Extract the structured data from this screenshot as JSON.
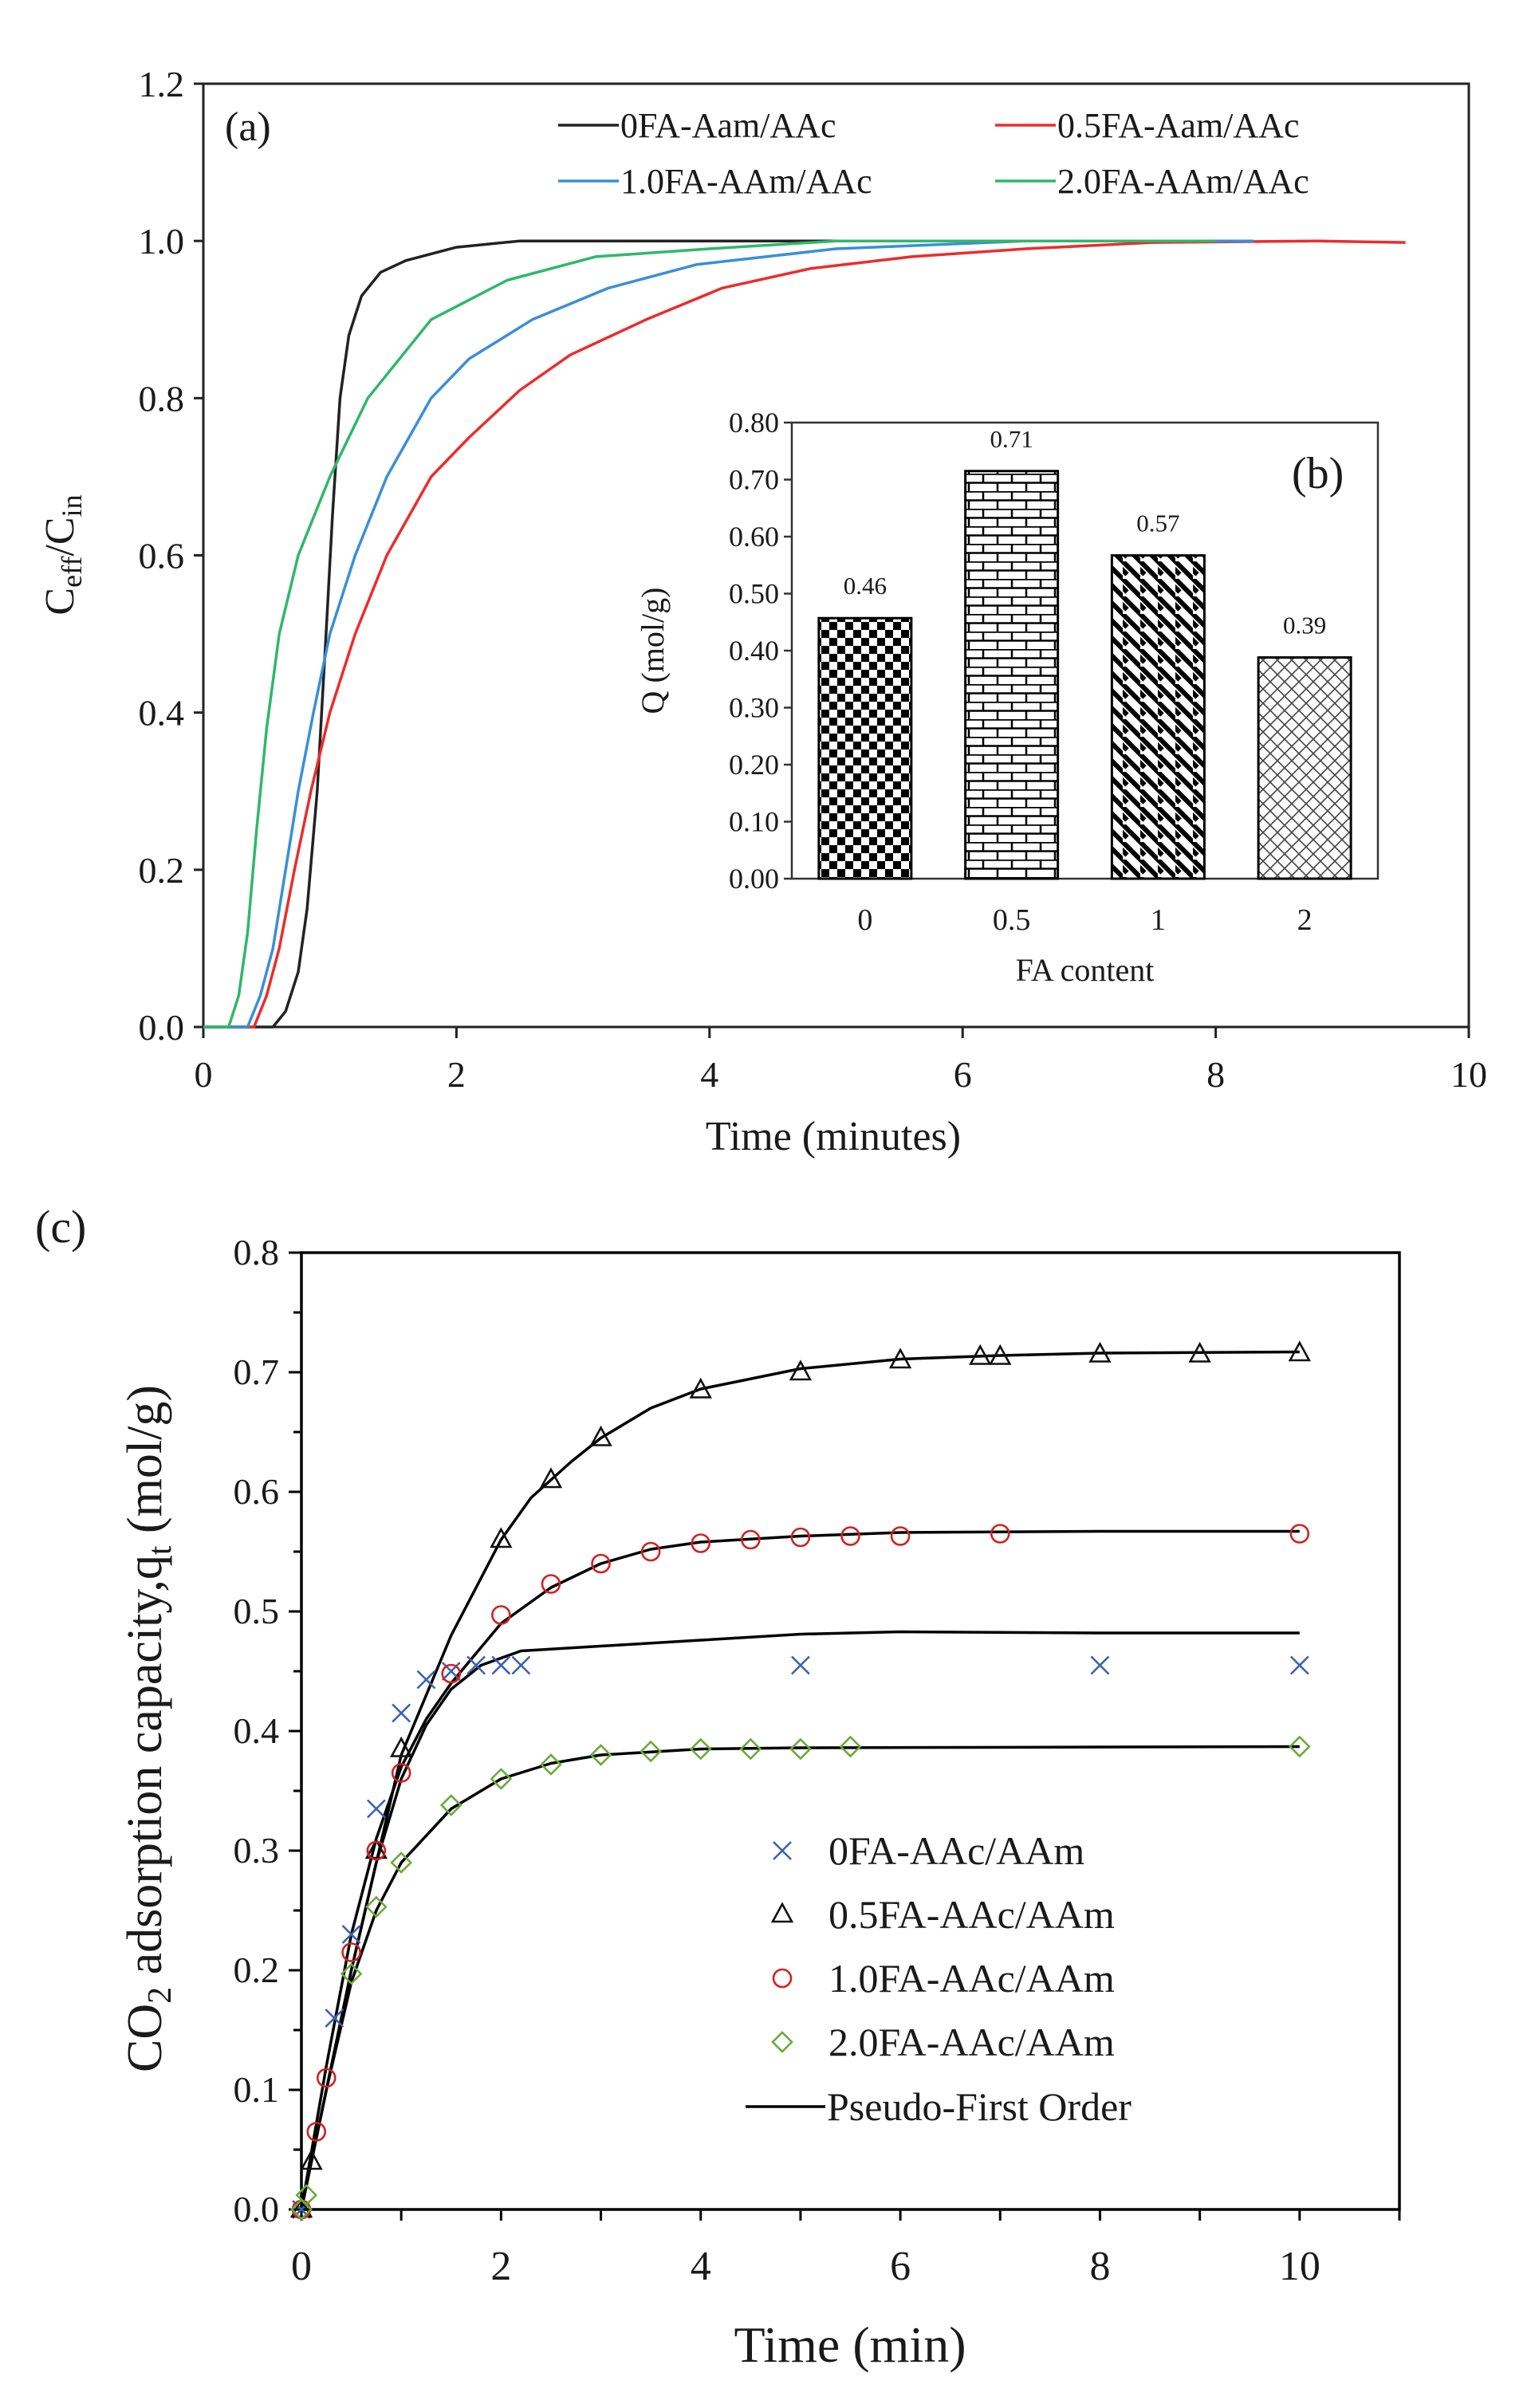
{
  "chart_data": [
    {
      "id": "a",
      "type": "line",
      "panel_label": "(a)",
      "xlabel": "Time (minutes)",
      "ylabel_main": "C",
      "ylabel_sub1": "eff",
      "ylabel_sep": "/C",
      "ylabel_sub2": "in",
      "xlim": [
        0,
        10
      ],
      "ylim": [
        0,
        1.2
      ],
      "xticks": [
        "0",
        "2",
        "4",
        "6",
        "8",
        "10"
      ],
      "yticks": [
        "0.0",
        "0.2",
        "0.4",
        "0.6",
        "0.8",
        "1.0",
        "1.2"
      ],
      "legend": "top-right",
      "series": [
        {
          "name": "0FA-Aam/AAc",
          "color": "#222222",
          "points": [
            [
              0,
              0
            ],
            [
              0.55,
              0
            ],
            [
              0.65,
              0.02
            ],
            [
              0.75,
              0.07
            ],
            [
              0.82,
              0.15
            ],
            [
              0.9,
              0.3
            ],
            [
              0.97,
              0.5
            ],
            [
              1.02,
              0.65
            ],
            [
              1.08,
              0.8
            ],
            [
              1.15,
              0.88
            ],
            [
              1.25,
              0.93
            ],
            [
              1.4,
              0.96
            ],
            [
              1.6,
              0.975
            ],
            [
              2.0,
              0.992
            ],
            [
              2.5,
              1.0
            ],
            [
              8.0,
              1.0
            ]
          ]
        },
        {
          "name": "0.5FA-Aam/AAc",
          "color": "#ee2b2b",
          "points": [
            [
              0,
              0
            ],
            [
              0.4,
              0
            ],
            [
              0.5,
              0.04
            ],
            [
              0.6,
              0.1
            ],
            [
              0.72,
              0.2
            ],
            [
              0.85,
              0.3
            ],
            [
              1.0,
              0.4
            ],
            [
              1.2,
              0.5
            ],
            [
              1.45,
              0.6
            ],
            [
              1.8,
              0.7
            ],
            [
              2.1,
              0.75
            ],
            [
              2.5,
              0.81
            ],
            [
              2.9,
              0.855
            ],
            [
              3.5,
              0.9
            ],
            [
              4.1,
              0.94
            ],
            [
              4.8,
              0.965
            ],
            [
              5.6,
              0.98
            ],
            [
              6.5,
              0.99
            ],
            [
              7.5,
              0.998
            ],
            [
              8.8,
              1.0
            ],
            [
              9.5,
              0.998
            ]
          ]
        },
        {
          "name": "1.0FA-AAm/AAc",
          "color": "#3a8fd6",
          "points": [
            [
              0,
              0
            ],
            [
              0.35,
              0
            ],
            [
              0.45,
              0.04
            ],
            [
              0.55,
              0.1
            ],
            [
              0.65,
              0.2
            ],
            [
              0.75,
              0.3
            ],
            [
              0.87,
              0.4
            ],
            [
              1.0,
              0.5
            ],
            [
              1.2,
              0.6
            ],
            [
              1.45,
              0.7
            ],
            [
              1.8,
              0.8
            ],
            [
              2.1,
              0.85
            ],
            [
              2.6,
              0.9
            ],
            [
              3.2,
              0.94
            ],
            [
              3.9,
              0.97
            ],
            [
              5.0,
              0.99
            ],
            [
              6.5,
              1.0
            ],
            [
              8.3,
              1.0
            ]
          ]
        },
        {
          "name": "2.0FA-AAm/AAc",
          "color": "#2fb86a",
          "points": [
            [
              0,
              0
            ],
            [
              0.2,
              0
            ],
            [
              0.28,
              0.04
            ],
            [
              0.35,
              0.12
            ],
            [
              0.42,
              0.25
            ],
            [
              0.5,
              0.38
            ],
            [
              0.6,
              0.5
            ],
            [
              0.75,
              0.6
            ],
            [
              1.0,
              0.7
            ],
            [
              1.3,
              0.8
            ],
            [
              1.8,
              0.9
            ],
            [
              2.4,
              0.95
            ],
            [
              3.1,
              0.98
            ],
            [
              4.0,
              0.99
            ],
            [
              5.0,
              1.0
            ],
            [
              8.0,
              1.0
            ]
          ]
        }
      ]
    },
    {
      "id": "b",
      "type": "bar",
      "panel_label": "(b)",
      "xlabel": "FA content",
      "ylabel": "Q (mol/g)",
      "ylim": [
        0,
        0.8
      ],
      "yticks": [
        "0.00",
        "0.10",
        "0.20",
        "0.30",
        "0.40",
        "0.50",
        "0.60",
        "0.70",
        "0.80"
      ],
      "categories": [
        "0",
        "0.5",
        "1",
        "2"
      ],
      "values": [
        0.457,
        0.715,
        0.567,
        0.388
      ],
      "value_labels": [
        "0.46",
        "0.71",
        "0.57",
        "0.39"
      ],
      "patterns": [
        "checker",
        "brick",
        "diagonal",
        "crosshatch"
      ]
    },
    {
      "id": "c",
      "type": "scatter",
      "panel_label": "(c)",
      "xlabel": "Time (min)",
      "ylabel_pre": "CO",
      "ylabel_sub": "2",
      "ylabel_mid": " adsorption  capacity,q",
      "ylabel_sub2": "t",
      "ylabel_post": "  (mol/g)",
      "xlim": [
        0,
        11
      ],
      "ylim": [
        0,
        0.8
      ],
      "xticks": [
        "0",
        "2",
        "4",
        "6",
        "8",
        "10"
      ],
      "yticks": [
        "0.0",
        "0.1",
        "0.2",
        "0.3",
        "0.4",
        "0.5",
        "0.6",
        "0.7",
        "0.8"
      ],
      "legend": "center-right",
      "series": [
        {
          "name": "0FA-AAc/AAm",
          "marker": "x",
          "color": "#3a62b0",
          "points": [
            [
              0,
              0
            ],
            [
              0.33,
              0.16
            ],
            [
              0.5,
              0.23
            ],
            [
              0.75,
              0.335
            ],
            [
              1,
              0.415
            ],
            [
              1.25,
              0.443
            ],
            [
              1.5,
              0.45
            ],
            [
              1.75,
              0.455
            ],
            [
              2,
              0.455
            ],
            [
              2.2,
              0.455
            ],
            [
              5,
              0.455
            ],
            [
              8,
              0.455
            ],
            [
              10,
              0.455
            ]
          ],
          "fit": [
            [
              0,
              0
            ],
            [
              0.25,
              0.1
            ],
            [
              0.5,
              0.2
            ],
            [
              0.75,
              0.29
            ],
            [
              1,
              0.36
            ],
            [
              1.25,
              0.405
            ],
            [
              1.5,
              0.435
            ],
            [
              1.8,
              0.455
            ],
            [
              2.2,
              0.467
            ],
            [
              4,
              0.476
            ],
            [
              5,
              0.481
            ],
            [
              6,
              0.483
            ],
            [
              8,
              0.482
            ],
            [
              10,
              0.482
            ]
          ]
        },
        {
          "name": "0.5FA-AAc/AAm",
          "marker": "triangle",
          "color": "#111111",
          "points": [
            [
              0,
              0
            ],
            [
              0.1,
              0.04
            ],
            [
              0.75,
              0.3
            ],
            [
              1,
              0.385
            ],
            [
              2,
              0.56
            ],
            [
              2.5,
              0.61
            ],
            [
              3,
              0.645
            ],
            [
              4,
              0.685
            ],
            [
              5,
              0.7
            ],
            [
              6,
              0.71
            ],
            [
              6.8,
              0.713
            ],
            [
              7,
              0.713
            ],
            [
              8,
              0.715
            ],
            [
              9,
              0.715
            ],
            [
              10,
              0.716
            ]
          ],
          "fit": [
            [
              0,
              0
            ],
            [
              0.5,
              0.2
            ],
            [
              1,
              0.38
            ],
            [
              1.5,
              0.48
            ],
            [
              2,
              0.56
            ],
            [
              2.3,
              0.595
            ],
            [
              2.7,
              0.625
            ],
            [
              3,
              0.645
            ],
            [
              3.5,
              0.67
            ],
            [
              4,
              0.686
            ],
            [
              5,
              0.703
            ],
            [
              6,
              0.711
            ],
            [
              7,
              0.714
            ],
            [
              8,
              0.716
            ],
            [
              10,
              0.717
            ]
          ]
        },
        {
          "name": "1.0FA-AAc/AAm",
          "marker": "circle",
          "color": "#d42020",
          "points": [
            [
              0,
              0
            ],
            [
              0.15,
              0.065
            ],
            [
              0.25,
              0.11
            ],
            [
              0.5,
              0.215
            ],
            [
              0.75,
              0.3
            ],
            [
              1,
              0.365
            ],
            [
              1.5,
              0.448
            ],
            [
              2,
              0.497
            ],
            [
              2.5,
              0.523
            ],
            [
              3,
              0.54
            ],
            [
              3.5,
              0.55
            ],
            [
              4,
              0.557
            ],
            [
              4.5,
              0.56
            ],
            [
              5,
              0.562
            ],
            [
              5.5,
              0.563
            ],
            [
              6,
              0.563
            ],
            [
              7,
              0.565
            ],
            [
              10,
              0.565
            ]
          ],
          "fit": [
            [
              0,
              0
            ],
            [
              0.25,
              0.12
            ],
            [
              0.5,
              0.23
            ],
            [
              0.75,
              0.31
            ],
            [
              1,
              0.37
            ],
            [
              1.25,
              0.41
            ],
            [
              1.5,
              0.44
            ],
            [
              2,
              0.49
            ],
            [
              2.5,
              0.52
            ],
            [
              3,
              0.54
            ],
            [
              3.5,
              0.552
            ],
            [
              4,
              0.558
            ],
            [
              5,
              0.563
            ],
            [
              6,
              0.566
            ],
            [
              8,
              0.567
            ],
            [
              10,
              0.567
            ]
          ]
        },
        {
          "name": "2.0FA-AAc/AAm",
          "marker": "diamond",
          "color": "#6aaa3a",
          "points": [
            [
              0,
              0
            ],
            [
              0.05,
              0.012
            ],
            [
              0.5,
              0.197
            ],
            [
              0.75,
              0.253
            ],
            [
              1,
              0.29
            ],
            [
              1.5,
              0.338
            ],
            [
              2,
              0.36
            ],
            [
              2.5,
              0.372
            ],
            [
              3,
              0.38
            ],
            [
              3.5,
              0.383
            ],
            [
              4,
              0.385
            ],
            [
              4.5,
              0.385
            ],
            [
              5,
              0.385
            ],
            [
              5.5,
              0.387
            ],
            [
              10,
              0.387
            ]
          ],
          "fit": [
            [
              0,
              0
            ],
            [
              0.25,
              0.1
            ],
            [
              0.5,
              0.19
            ],
            [
              0.75,
              0.25
            ],
            [
              1,
              0.29
            ],
            [
              1.5,
              0.335
            ],
            [
              2,
              0.36
            ],
            [
              2.5,
              0.373
            ],
            [
              3,
              0.38
            ],
            [
              4,
              0.385
            ],
            [
              5,
              0.386
            ],
            [
              10,
              0.387
            ]
          ]
        }
      ],
      "fit_legend": "Pseudo-First Order"
    }
  ]
}
